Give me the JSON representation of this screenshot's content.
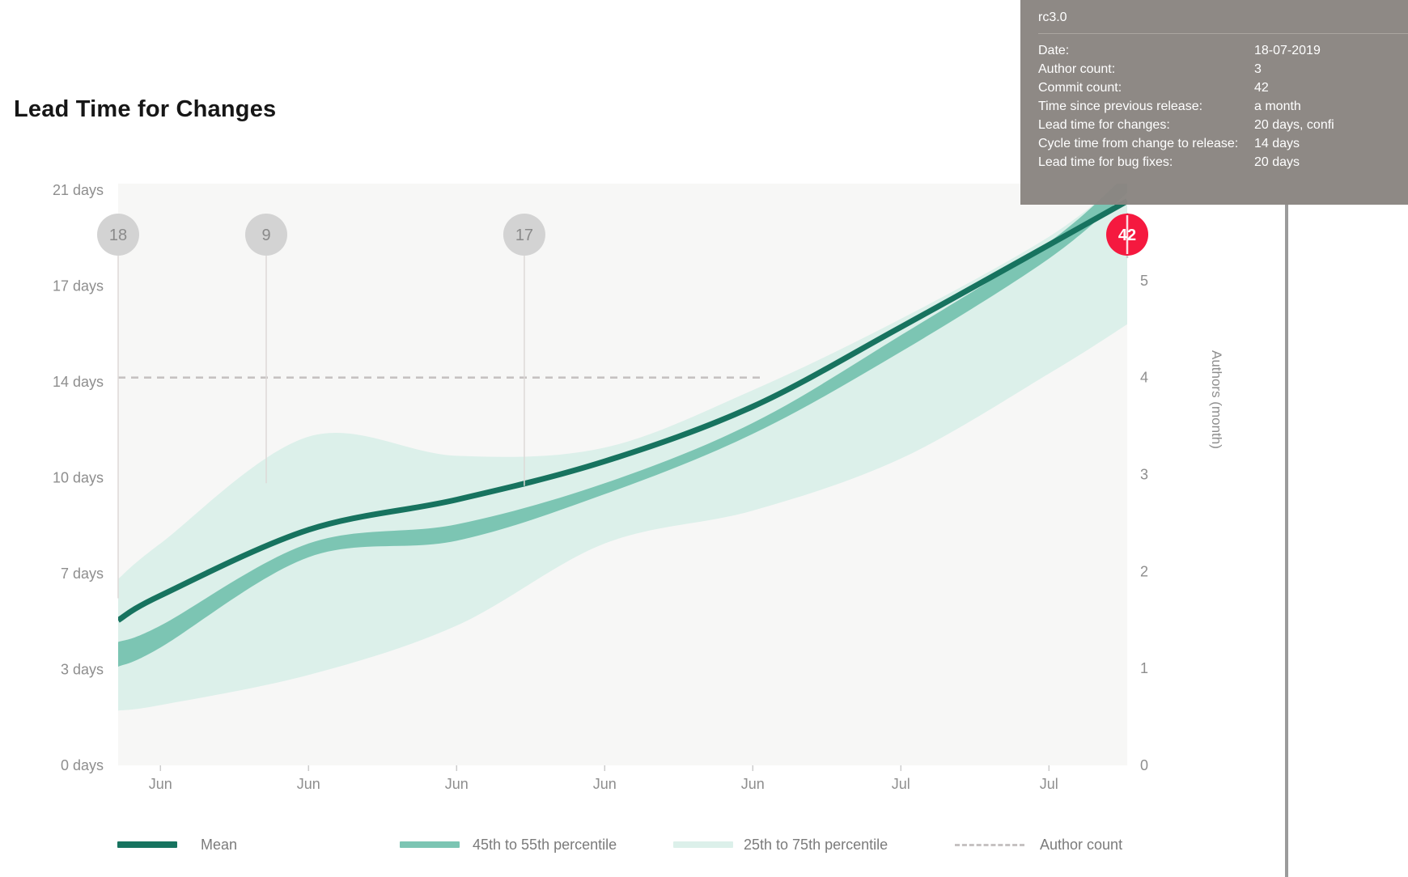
{
  "page": {
    "title": "Lead Time for Changes"
  },
  "tooltip": {
    "title": "rc3.0",
    "rows": [
      {
        "label": "Date:",
        "value": "18-07-2019"
      },
      {
        "label": "Author count:",
        "value": "3"
      },
      {
        "label": "Commit count:",
        "value": "42"
      },
      {
        "label": "Time since previous release:",
        "value": "a month"
      },
      {
        "label": "Lead time for changes:",
        "value": "20 days, confi"
      },
      {
        "label": "Cycle time from change to release:",
        "value": "14 days"
      },
      {
        "label": "Lead time for bug fixes:",
        "value": "20 days"
      }
    ]
  },
  "legend": [
    {
      "label": "Mean",
      "swatch": "line",
      "color": "#17735f"
    },
    {
      "label": "45th to 55th percentile",
      "swatch": "band",
      "color": "#7cc5b3"
    },
    {
      "label": "25th to 75th percentile",
      "swatch": "band",
      "color": "#dcf0ea"
    },
    {
      "label": "Author count",
      "swatch": "dashed",
      "color": "#c6c2c2"
    }
  ],
  "colors": {
    "mean": "#17735f",
    "band_45_55": "#7cc5b3",
    "band_25_75": "#dcf0ea",
    "plot_background": "#f7f7f6",
    "axis_text": "#8e8e8e",
    "dashed_author": "#c6c2c2",
    "marker_circle": "#d3d3d3",
    "marker_text": "#8a8a8a",
    "marker_line": "#ddd9d7",
    "selected_marker": "#f5193f",
    "tooltip_background": "#8a8581",
    "divider": "#9b9b9b",
    "tick_mark": "#cccccc"
  },
  "chart_data": {
    "type": "line",
    "title": "Lead Time for Changes",
    "x_axis": {
      "tick_labels": [
        "Jun",
        "Jun",
        "Jun",
        "Jun",
        "Jun",
        "Jul",
        "Jul"
      ],
      "tick_dates": [
        "2019-06-02",
        "2019-06-09",
        "2019-06-16",
        "2019-06-23",
        "2019-06-30",
        "2019-07-07",
        "2019-07-14"
      ],
      "tick_x_days": [
        2,
        9,
        16,
        23,
        30,
        37,
        44
      ],
      "x_range_days": [
        0,
        47.7
      ]
    },
    "y_axis_left": {
      "tick_labels": [
        "0 days",
        "3 days",
        "7 days",
        "10 days",
        "14 days",
        "17 days",
        "21 days"
      ],
      "tick_step_days": 3.5,
      "range_days": [
        0,
        21.2
      ]
    },
    "y_axis_right": {
      "title": "Authors (month)",
      "tick_labels": [
        "0",
        "1",
        "2",
        "3",
        "4",
        "5"
      ],
      "range": [
        0,
        6
      ]
    },
    "x_sample_days": [
      0,
      2,
      9,
      16,
      23,
      30,
      37,
      44,
      47.7
    ],
    "series": [
      {
        "name": "Mean",
        "type": "line",
        "color": "#17735f",
        "values": [
          5.3,
          6.2,
          8.6,
          9.7,
          11.1,
          13.1,
          16.0,
          19.0,
          20.6
        ]
      },
      {
        "name": "45th to 55th percentile",
        "type": "band",
        "color": "#7cc5b3",
        "low": [
          3.6,
          4.3,
          7.6,
          8.2,
          9.9,
          12.1,
          15.1,
          18.5,
          20.9
        ],
        "high": [
          4.5,
          5.1,
          8.1,
          8.8,
          10.3,
          12.5,
          15.7,
          19.1,
          21.6
        ]
      },
      {
        "name": "25th to 75th percentile",
        "type": "band",
        "color": "#dcf0ea",
        "low": [
          2.0,
          2.2,
          3.3,
          5.1,
          8.1,
          9.3,
          11.2,
          14.3,
          16.1
        ],
        "high": [
          6.8,
          8.1,
          12.0,
          11.3,
          11.6,
          13.7,
          16.3,
          19.3,
          21.5
        ]
      },
      {
        "name": "Author count",
        "type": "dashed-line",
        "axis": "right",
        "constant_value": 4,
        "x_span_days": [
          0,
          30.5
        ],
        "color": "#c6c2c2"
      }
    ],
    "release_markers": [
      {
        "label": "18",
        "x_days": 0,
        "line_end_days": 6.1,
        "selected": false
      },
      {
        "label": "9",
        "x_days": 7,
        "line_end_days": 10.3,
        "selected": false
      },
      {
        "label": "17",
        "x_days": 19.2,
        "line_end_days": 10.2,
        "selected": false
      },
      {
        "label": "42",
        "x_days": 47.7,
        "line_end_days": 18.5,
        "selected": true,
        "date": "18-07-2019"
      }
    ]
  }
}
